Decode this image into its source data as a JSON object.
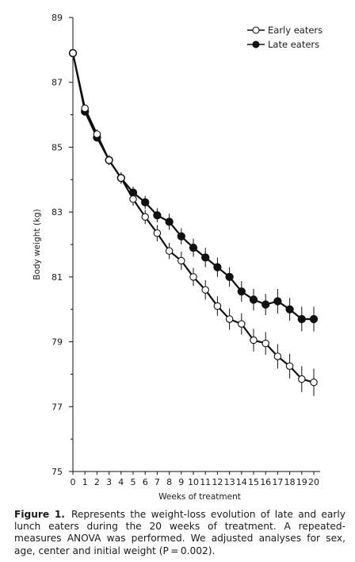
{
  "chart_data": {
    "type": "line",
    "title": "",
    "xlabel": "Weeks of treatment",
    "ylabel": "Body weight (kg)",
    "x": [
      0,
      1,
      2,
      3,
      4,
      5,
      6,
      7,
      8,
      9,
      10,
      11,
      12,
      13,
      14,
      15,
      16,
      17,
      18,
      19,
      20
    ],
    "xticks": [
      "0",
      "1",
      "2",
      "3",
      "4",
      "5",
      "6",
      "7",
      "8",
      "9",
      "10",
      "11",
      "12",
      "13",
      "14",
      "15",
      "16",
      "17",
      "18",
      "19",
      "20"
    ],
    "ylim": [
      75,
      89
    ],
    "yticks": [
      "75",
      "77",
      "79",
      "81",
      "83",
      "85",
      "87",
      "89"
    ],
    "legend_position": "top-right",
    "series": [
      {
        "name": "Early eaters",
        "marker": "open-circle",
        "values": [
          87.9,
          86.2,
          85.4,
          84.6,
          84.05,
          83.4,
          82.85,
          82.35,
          81.8,
          81.5,
          81.0,
          80.6,
          80.1,
          79.7,
          79.55,
          79.05,
          78.95,
          78.55,
          78.25,
          77.85,
          77.75
        ],
        "errors": [
          0,
          0.1,
          0.15,
          0.15,
          0.18,
          0.2,
          0.22,
          0.25,
          0.25,
          0.28,
          0.28,
          0.3,
          0.3,
          0.33,
          0.33,
          0.35,
          0.35,
          0.38,
          0.38,
          0.4,
          0.42
        ]
      },
      {
        "name": "Late eaters",
        "marker": "filled-circle",
        "values": [
          87.9,
          86.1,
          85.3,
          84.6,
          84.05,
          83.6,
          83.3,
          82.9,
          82.7,
          82.25,
          81.9,
          81.6,
          81.3,
          81.0,
          80.55,
          80.3,
          80.15,
          80.25,
          80.0,
          79.7,
          79.7
        ],
        "errors": [
          0,
          0.1,
          0.12,
          0.15,
          0.15,
          0.18,
          0.2,
          0.22,
          0.25,
          0.25,
          0.28,
          0.3,
          0.3,
          0.3,
          0.32,
          0.33,
          0.33,
          0.38,
          0.35,
          0.38,
          0.38
        ]
      }
    ]
  },
  "caption": {
    "label": "Figure 1.",
    "text": "Represents the weight-loss evolution of late and early lunch eaters during the 20 weeks of treatment. A repeated-measures ANOVA was performed. We adjusted analyses for sex, age, center and initial weight (P = 0.002)."
  },
  "colors": {
    "line": "#111111",
    "background": "#ffffff"
  }
}
